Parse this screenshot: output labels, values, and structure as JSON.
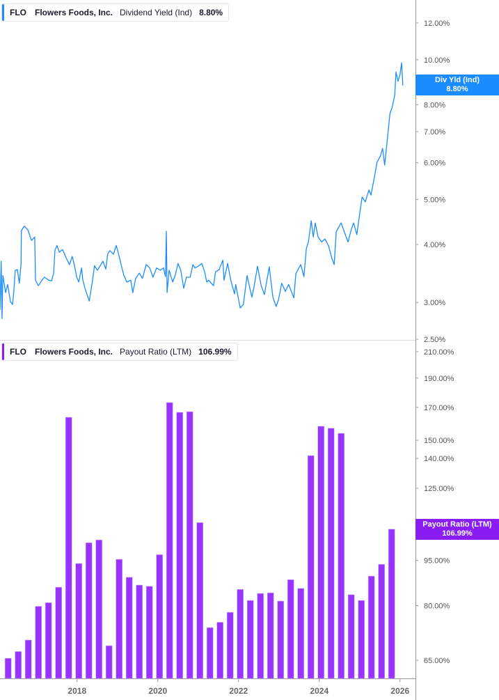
{
  "colors": {
    "yield": "#1a8cff",
    "payout": "#9933ff",
    "payout_badge": "#8a1cf5",
    "axis": "#999999"
  },
  "top_legend": {
    "ticker": "FLO",
    "company": "Flowers Foods, Inc.",
    "metric": "Dividend Yield (Ind)",
    "value": "8.80%"
  },
  "top_badge": {
    "label": "Div Yld (Ind)",
    "value": "8.80%"
  },
  "bottom_legend": {
    "ticker": "FLO",
    "company": "Flowers Foods, Inc.",
    "metric": "Payout Ratio (LTM)",
    "value": "106.99%"
  },
  "bottom_badge": {
    "label": "Payout Ratio (LTM)",
    "value": "106.99%"
  },
  "x_ticks": [
    "2018",
    "2020",
    "2022",
    "2024",
    "2026"
  ],
  "chart_data": [
    {
      "type": "line",
      "series_label": "Dividend Yield (Ind)",
      "y_scale": "log",
      "y_ticks": [
        "12.00%",
        "10.00%",
        "8.00%",
        "7.00%",
        "6.00%",
        "5.00%",
        "4.00%",
        "3.00%",
        "2.50%"
      ],
      "y_tick_values": [
        12,
        10,
        8,
        7,
        6,
        5,
        4,
        3,
        2.5
      ],
      "x_unit": "year",
      "ylim": [
        2.5,
        13.45
      ],
      "xlim": [
        2016.09,
        2026.38
      ],
      "grid": false,
      "legend": "top-left",
      "points": [
        [
          2016.09,
          2.89
        ],
        [
          2016.12,
          3.68
        ],
        [
          2016.14,
          2.77
        ],
        [
          2016.16,
          3.43
        ],
        [
          2016.23,
          3.15
        ],
        [
          2016.28,
          3.28
        ],
        [
          2016.35,
          3.01
        ],
        [
          2016.4,
          2.97
        ],
        [
          2016.43,
          3.15
        ],
        [
          2016.47,
          3.52
        ],
        [
          2016.52,
          3.53
        ],
        [
          2016.57,
          3.3
        ],
        [
          2016.61,
          3.62
        ],
        [
          2016.62,
          4.28
        ],
        [
          2016.69,
          4.38
        ],
        [
          2016.78,
          4.3
        ],
        [
          2016.87,
          4.08
        ],
        [
          2016.95,
          4.15
        ],
        [
          2016.97,
          3.35
        ],
        [
          2017.04,
          3.26
        ],
        [
          2017.12,
          3.34
        ],
        [
          2017.19,
          3.4
        ],
        [
          2017.3,
          3.35
        ],
        [
          2017.37,
          3.34
        ],
        [
          2017.42,
          3.47
        ],
        [
          2017.45,
          3.88
        ],
        [
          2017.5,
          3.98
        ],
        [
          2017.56,
          3.85
        ],
        [
          2017.64,
          3.9
        ],
        [
          2017.73,
          3.74
        ],
        [
          2017.81,
          3.62
        ],
        [
          2017.88,
          3.77
        ],
        [
          2017.93,
          3.62
        ],
        [
          2017.99,
          3.4
        ],
        [
          2018.04,
          3.32
        ],
        [
          2018.11,
          3.56
        ],
        [
          2018.14,
          3.36
        ],
        [
          2018.19,
          3.23
        ],
        [
          2018.3,
          3.02
        ],
        [
          2018.38,
          3.33
        ],
        [
          2018.43,
          3.6
        ],
        [
          2018.5,
          3.52
        ],
        [
          2018.59,
          3.62
        ],
        [
          2018.64,
          3.68
        ],
        [
          2018.71,
          3.54
        ],
        [
          2018.76,
          3.82
        ],
        [
          2018.81,
          3.88
        ],
        [
          2018.9,
          3.81
        ],
        [
          2018.97,
          3.98
        ],
        [
          2019.02,
          3.84
        ],
        [
          2019.11,
          3.56
        ],
        [
          2019.16,
          3.43
        ],
        [
          2019.23,
          3.32
        ],
        [
          2019.33,
          3.35
        ],
        [
          2019.38,
          3.15
        ],
        [
          2019.45,
          3.38
        ],
        [
          2019.54,
          3.47
        ],
        [
          2019.62,
          3.38
        ],
        [
          2019.71,
          3.62
        ],
        [
          2019.8,
          3.56
        ],
        [
          2019.88,
          3.4
        ],
        [
          2019.97,
          3.56
        ],
        [
          2020.06,
          3.52
        ],
        [
          2020.14,
          3.56
        ],
        [
          2020.19,
          3.41
        ],
        [
          2020.21,
          4.27
        ],
        [
          2020.23,
          3.15
        ],
        [
          2020.28,
          3.52
        ],
        [
          2020.37,
          3.32
        ],
        [
          2020.43,
          3.43
        ],
        [
          2020.5,
          3.64
        ],
        [
          2020.57,
          3.52
        ],
        [
          2020.64,
          3.22
        ],
        [
          2020.71,
          3.4
        ],
        [
          2020.8,
          3.4
        ],
        [
          2020.87,
          3.62
        ],
        [
          2020.92,
          3.56
        ],
        [
          2021.0,
          3.59
        ],
        [
          2021.09,
          3.64
        ],
        [
          2021.16,
          3.49
        ],
        [
          2021.21,
          3.32
        ],
        [
          2021.26,
          3.35
        ],
        [
          2021.38,
          3.26
        ],
        [
          2021.43,
          3.49
        ],
        [
          2021.52,
          3.53
        ],
        [
          2021.61,
          3.7
        ],
        [
          2021.64,
          3.35
        ],
        [
          2021.73,
          3.64
        ],
        [
          2021.81,
          3.34
        ],
        [
          2021.9,
          3.13
        ],
        [
          2021.93,
          3.28
        ],
        [
          2022.04,
          2.92
        ],
        [
          2022.12,
          2.97
        ],
        [
          2022.21,
          3.43
        ],
        [
          2022.33,
          3.08
        ],
        [
          2022.38,
          3.23
        ],
        [
          2022.47,
          3.59
        ],
        [
          2022.56,
          3.26
        ],
        [
          2022.64,
          3.12
        ],
        [
          2022.76,
          3.58
        ],
        [
          2022.85,
          3.08
        ],
        [
          2022.93,
          2.94
        ],
        [
          2022.99,
          3.04
        ],
        [
          2023.07,
          3.3
        ],
        [
          2023.16,
          3.17
        ],
        [
          2023.24,
          3.28
        ],
        [
          2023.37,
          3.07
        ],
        [
          2023.42,
          3.46
        ],
        [
          2023.54,
          3.62
        ],
        [
          2023.62,
          3.41
        ],
        [
          2023.68,
          3.92
        ],
        [
          2023.73,
          4.05
        ],
        [
          2023.8,
          4.5
        ],
        [
          2023.85,
          4.15
        ],
        [
          2023.9,
          4.45
        ],
        [
          2023.97,
          4.15
        ],
        [
          2024.06,
          4.05
        ],
        [
          2024.14,
          4.11
        ],
        [
          2024.23,
          3.97
        ],
        [
          2024.31,
          3.74
        ],
        [
          2024.37,
          3.62
        ],
        [
          2024.42,
          4.26
        ],
        [
          2024.54,
          4.45
        ],
        [
          2024.62,
          4.26
        ],
        [
          2024.71,
          4.05
        ],
        [
          2024.8,
          4.33
        ],
        [
          2024.85,
          4.45
        ],
        [
          2024.93,
          4.2
        ],
        [
          2025.0,
          4.66
        ],
        [
          2025.06,
          5.06
        ],
        [
          2025.14,
          4.94
        ],
        [
          2025.23,
          5.24
        ],
        [
          2025.28,
          5.11
        ],
        [
          2025.37,
          5.61
        ],
        [
          2025.43,
          6.01
        ],
        [
          2025.52,
          6.22
        ],
        [
          2025.57,
          6.44
        ],
        [
          2025.62,
          5.93
        ],
        [
          2025.69,
          6.79
        ],
        [
          2025.75,
          7.66
        ],
        [
          2025.8,
          7.87
        ],
        [
          2025.87,
          8.38
        ],
        [
          2025.9,
          9.42
        ],
        [
          2025.95,
          8.98
        ],
        [
          2026.0,
          9.29
        ],
        [
          2026.04,
          9.85
        ],
        [
          2026.07,
          8.8
        ]
      ]
    },
    {
      "type": "bar",
      "series_label": "Payout Ratio (LTM)",
      "y_scale": "log",
      "y_ticks": [
        "210.00%",
        "190.00%",
        "170.00%",
        "150.00%",
        "140.00%",
        "125.00%",
        "95.00%",
        "80.00%",
        "65.00%"
      ],
      "y_tick_values": [
        210,
        190,
        170,
        150,
        140,
        125,
        95,
        80,
        65
      ],
      "ylim": [
        60.6,
        210
      ],
      "grid": false,
      "legend": "top-left",
      "categories": [
        "2016-04",
        "2016-07",
        "2016-10",
        "2017-01",
        "2017-04",
        "2017-07",
        "2017-10",
        "2018-01",
        "2018-04",
        "2018-07",
        "2018-10",
        "2019-01",
        "2019-04",
        "2019-07",
        "2019-10",
        "2020-01",
        "2020-04",
        "2020-07",
        "2020-10",
        "2021-01",
        "2021-04",
        "2021-07",
        "2021-10",
        "2022-01",
        "2022-04",
        "2022-07",
        "2022-10",
        "2023-01",
        "2023-04",
        "2023-07",
        "2023-10",
        "2024-01",
        "2024-04",
        "2024-07",
        "2024-10",
        "2025-01",
        "2025-04",
        "2025-07",
        "2025-10"
      ],
      "values": [
        65.5,
        67.2,
        70.2,
        79.8,
        80.9,
        85.8,
        163.7,
        93.9,
        101.6,
        102.7,
        68.7,
        95.4,
        89.1,
        86.5,
        86.1,
        97.1,
        173.1,
        166.8,
        167.2,
        109.7,
        73.6,
        75.1,
        78.0,
        85.1,
        81.6,
        83.8,
        84.0,
        81.4,
        88.3,
        85.4,
        141.5,
        158.2,
        157.0,
        154.0,
        83.4,
        81.6,
        89.5,
        93.6,
        106.99
      ]
    }
  ]
}
